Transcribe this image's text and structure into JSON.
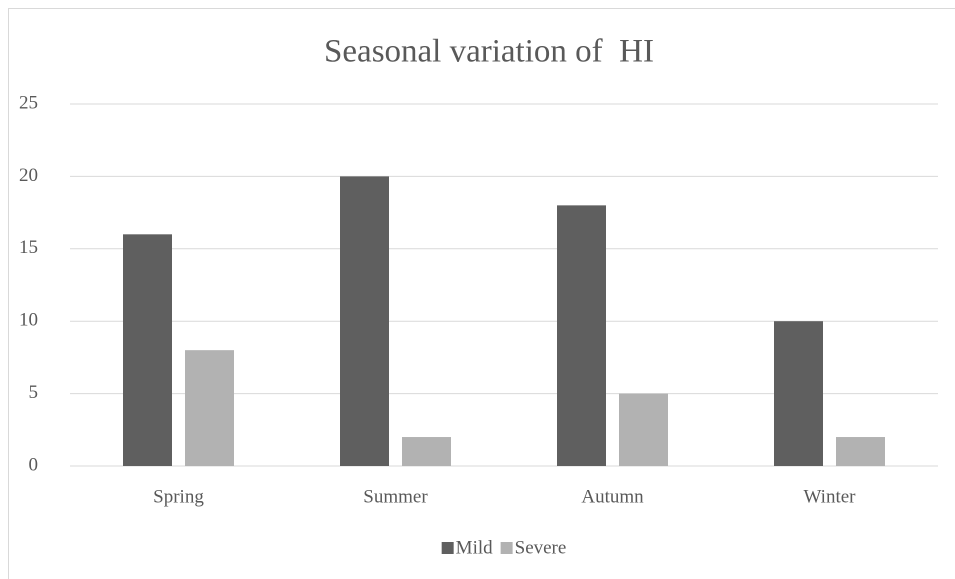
{
  "chart_data": {
    "type": "bar",
    "title": "Seasonal variation of  HI",
    "categories": [
      "Spring",
      "Summer",
      "Autumn",
      "Winter"
    ],
    "series": [
      {
        "name": "Mild",
        "color": "#5f5f5f",
        "values": [
          16,
          20,
          18,
          10
        ]
      },
      {
        "name": "Severe",
        "color": "#b2b2b2",
        "values": [
          8,
          2,
          5,
          2
        ]
      }
    ],
    "ylim": [
      0,
      25
    ],
    "yticks": [
      0,
      5,
      10,
      15,
      20,
      25
    ],
    "grid": true,
    "legend": "bottom"
  }
}
